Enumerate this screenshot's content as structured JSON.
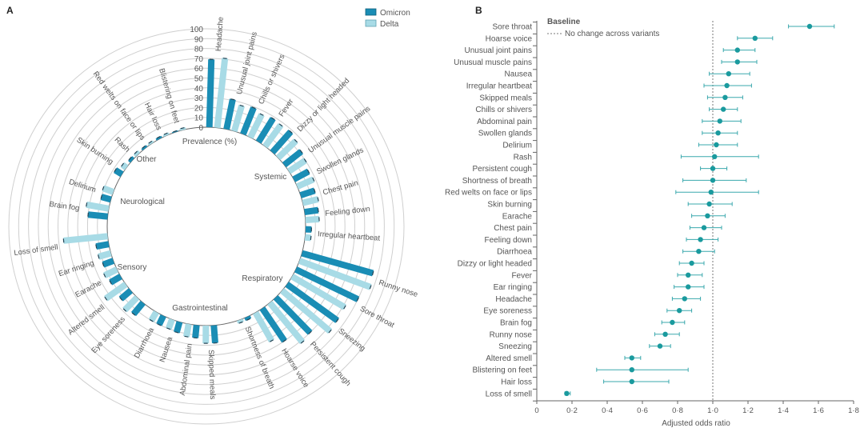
{
  "chart_data": [
    {
      "type": "bar",
      "subtype": "radial-grouped-bar",
      "panel_label": "A",
      "axis_label": "Prevalence (%)",
      "ylim": [
        0,
        100
      ],
      "tick_labels": [
        "0",
        "10",
        "20",
        "30",
        "40",
        "50",
        "60",
        "70",
        "80",
        "90",
        "100"
      ],
      "legend": [
        {
          "name": "Omicron",
          "color": "#1a8db5"
        },
        {
          "name": "Delta",
          "color": "#a8dbe6"
        }
      ],
      "legend_position": "top-right",
      "groups": [
        {
          "name": "Systemic",
          "symptoms": [
            {
              "label": "Headache",
              "omicron": 69,
              "delta": 71
            },
            {
              "label": "Unusual joint pains",
              "omicron": 31,
              "delta": 27
            },
            {
              "label": "Chills or shivers",
              "omicron": 29,
              "delta": 26
            },
            {
              "label": "Fever",
              "omicron": 28,
              "delta": 27
            },
            {
              "label": "Dizzy or light headed",
              "omicron": 28,
              "delta": 25
            },
            {
              "label": "Unusual muscle pains",
              "omicron": 22,
              "delta": 20
            },
            {
              "label": "Swollen glands",
              "omicron": 17,
              "delta": 18
            },
            {
              "label": "Chest pain",
              "omicron": 15,
              "delta": 16
            },
            {
              "label": "Feeling down",
              "omicron": 14,
              "delta": 14
            },
            {
              "label": "Irregular heartbeat",
              "omicron": 6,
              "delta": 6
            }
          ]
        },
        {
          "name": "Respiratory",
          "symptoms": [
            {
              "label": "Runny nose",
              "omicron": 75,
              "delta": 77
            },
            {
              "label": "Sore throat",
              "omicron": 70,
              "delta": 62
            },
            {
              "label": "Sneezing",
              "omicron": 63,
              "delta": 64
            },
            {
              "label": "Persistent cough",
              "omicron": 50,
              "delta": 52
            },
            {
              "label": "Hoarse voice",
              "omicron": 40,
              "delta": 33
            },
            {
              "label": "Shortness of breath",
              "omicron": 3,
              "delta": 3
            }
          ]
        },
        {
          "name": "Gastrointestinal",
          "symptoms": [
            {
              "label": "Skipped meals",
              "omicron": 18,
              "delta": 18
            },
            {
              "label": "Abdominal pain",
              "omicron": 13,
              "delta": 13
            },
            {
              "label": "Nausea",
              "omicron": 11,
              "delta": 10
            },
            {
              "label": "Diarrhoea",
              "omicron": 10,
              "delta": 10
            }
          ]
        },
        {
          "name": "Sensory",
          "symptoms": [
            {
              "label": "Eye soreness",
              "omicron": 15,
              "delta": 18
            },
            {
              "label": "Altered smell",
              "omicron": 13,
              "delta": 25
            },
            {
              "label": "Earache",
              "omicron": 12,
              "delta": 14
            },
            {
              "label": "Ear ringing",
              "omicron": 11,
              "delta": 13
            },
            {
              "label": "Loss of smell",
              "omicron": 13,
              "delta": 45
            }
          ]
        },
        {
          "name": "Neurological",
          "symptoms": [
            {
              "label": "Brain fog",
              "omicron": 20,
              "delta": 23
            },
            {
              "label": "Delirium",
              "omicron": 10,
              "delta": 11
            }
          ]
        },
        {
          "name": "Other",
          "symptoms": [
            {
              "label": "Skin burning",
              "omicron": 8,
              "delta": 5
            },
            {
              "label": "Rash",
              "omicron": 3,
              "delta": 3
            },
            {
              "label": "Red welts on face or lips",
              "omicron": 2,
              "delta": 2
            },
            {
              "label": "Hair loss",
              "omicron": 2,
              "delta": 2
            },
            {
              "label": "Blistering on feet",
              "omicron": 1,
              "delta": 2
            }
          ]
        }
      ]
    },
    {
      "type": "scatter",
      "subtype": "forest-plot",
      "panel_label": "B",
      "xlabel": "Adjusted odds ratio",
      "xlim": [
        0,
        1.8
      ],
      "tick_labels": [
        "0",
        "0·2",
        "0·4",
        "0·6",
        "0·8",
        "1·0",
        "1·2",
        "1·4",
        "1·6",
        "1·8"
      ],
      "reference_value": 1.0,
      "legend_title": "Baseline",
      "legend_entry": "No change across variants",
      "legend_position": "top-left",
      "point_color": "#1a9a9e",
      "rows": [
        {
          "label": "Sore throat",
          "or": 1.55,
          "lo": 1.43,
          "hi": 1.69
        },
        {
          "label": "Hoarse voice",
          "or": 1.24,
          "lo": 1.14,
          "hi": 1.34
        },
        {
          "label": "Unusual joint pains",
          "or": 1.14,
          "lo": 1.06,
          "hi": 1.24
        },
        {
          "label": "Unusual muscle pains",
          "or": 1.14,
          "lo": 1.05,
          "hi": 1.25
        },
        {
          "label": "Nausea",
          "or": 1.09,
          "lo": 0.98,
          "hi": 1.21
        },
        {
          "label": "Irregular heartbeat",
          "or": 1.08,
          "lo": 0.95,
          "hi": 1.22
        },
        {
          "label": "Skipped meals",
          "or": 1.07,
          "lo": 0.97,
          "hi": 1.17
        },
        {
          "label": "Chills or shivers",
          "or": 1.06,
          "lo": 0.98,
          "hi": 1.14
        },
        {
          "label": "Abdominal pain",
          "or": 1.04,
          "lo": 0.94,
          "hi": 1.16
        },
        {
          "label": "Swollen glands",
          "or": 1.03,
          "lo": 0.94,
          "hi": 1.14
        },
        {
          "label": "Delirium",
          "or": 1.02,
          "lo": 0.92,
          "hi": 1.14
        },
        {
          "label": "Rash",
          "or": 1.01,
          "lo": 0.82,
          "hi": 1.26
        },
        {
          "label": "Persistent cough",
          "or": 1.0,
          "lo": 0.93,
          "hi": 1.08
        },
        {
          "label": "Shortness of breath",
          "or": 1.0,
          "lo": 0.83,
          "hi": 1.19
        },
        {
          "label": "Red welts on face or lips",
          "or": 0.99,
          "lo": 0.79,
          "hi": 1.26
        },
        {
          "label": "Skin burning",
          "or": 0.98,
          "lo": 0.86,
          "hi": 1.11
        },
        {
          "label": "Earache",
          "or": 0.97,
          "lo": 0.88,
          "hi": 1.07
        },
        {
          "label": "Chest pain",
          "or": 0.95,
          "lo": 0.87,
          "hi": 1.05
        },
        {
          "label": "Feeling down",
          "or": 0.93,
          "lo": 0.85,
          "hi": 1.03
        },
        {
          "label": "Diarrhoea",
          "or": 0.92,
          "lo": 0.83,
          "hi": 1.01
        },
        {
          "label": "Dizzy or light headed",
          "or": 0.88,
          "lo": 0.81,
          "hi": 0.95
        },
        {
          "label": "Fever",
          "or": 0.86,
          "lo": 0.8,
          "hi": 0.94
        },
        {
          "label": "Ear ringing",
          "or": 0.86,
          "lo": 0.78,
          "hi": 0.95
        },
        {
          "label": "Headache",
          "or": 0.84,
          "lo": 0.77,
          "hi": 0.93
        },
        {
          "label": "Eye soreness",
          "or": 0.81,
          "lo": 0.74,
          "hi": 0.88
        },
        {
          "label": "Brain fog",
          "or": 0.77,
          "lo": 0.71,
          "hi": 0.84
        },
        {
          "label": "Runny nose",
          "or": 0.73,
          "lo": 0.67,
          "hi": 0.81
        },
        {
          "label": "Sneezing",
          "or": 0.7,
          "lo": 0.64,
          "hi": 0.76
        },
        {
          "label": "Altered smell",
          "or": 0.54,
          "lo": 0.5,
          "hi": 0.59
        },
        {
          "label": "Blistering on feet",
          "or": 0.54,
          "lo": 0.34,
          "hi": 0.86
        },
        {
          "label": "Hair loss",
          "or": 0.54,
          "lo": 0.38,
          "hi": 0.75
        },
        {
          "label": "Loss of smell",
          "or": 0.17,
          "lo": 0.16,
          "hi": 0.19
        }
      ]
    }
  ]
}
